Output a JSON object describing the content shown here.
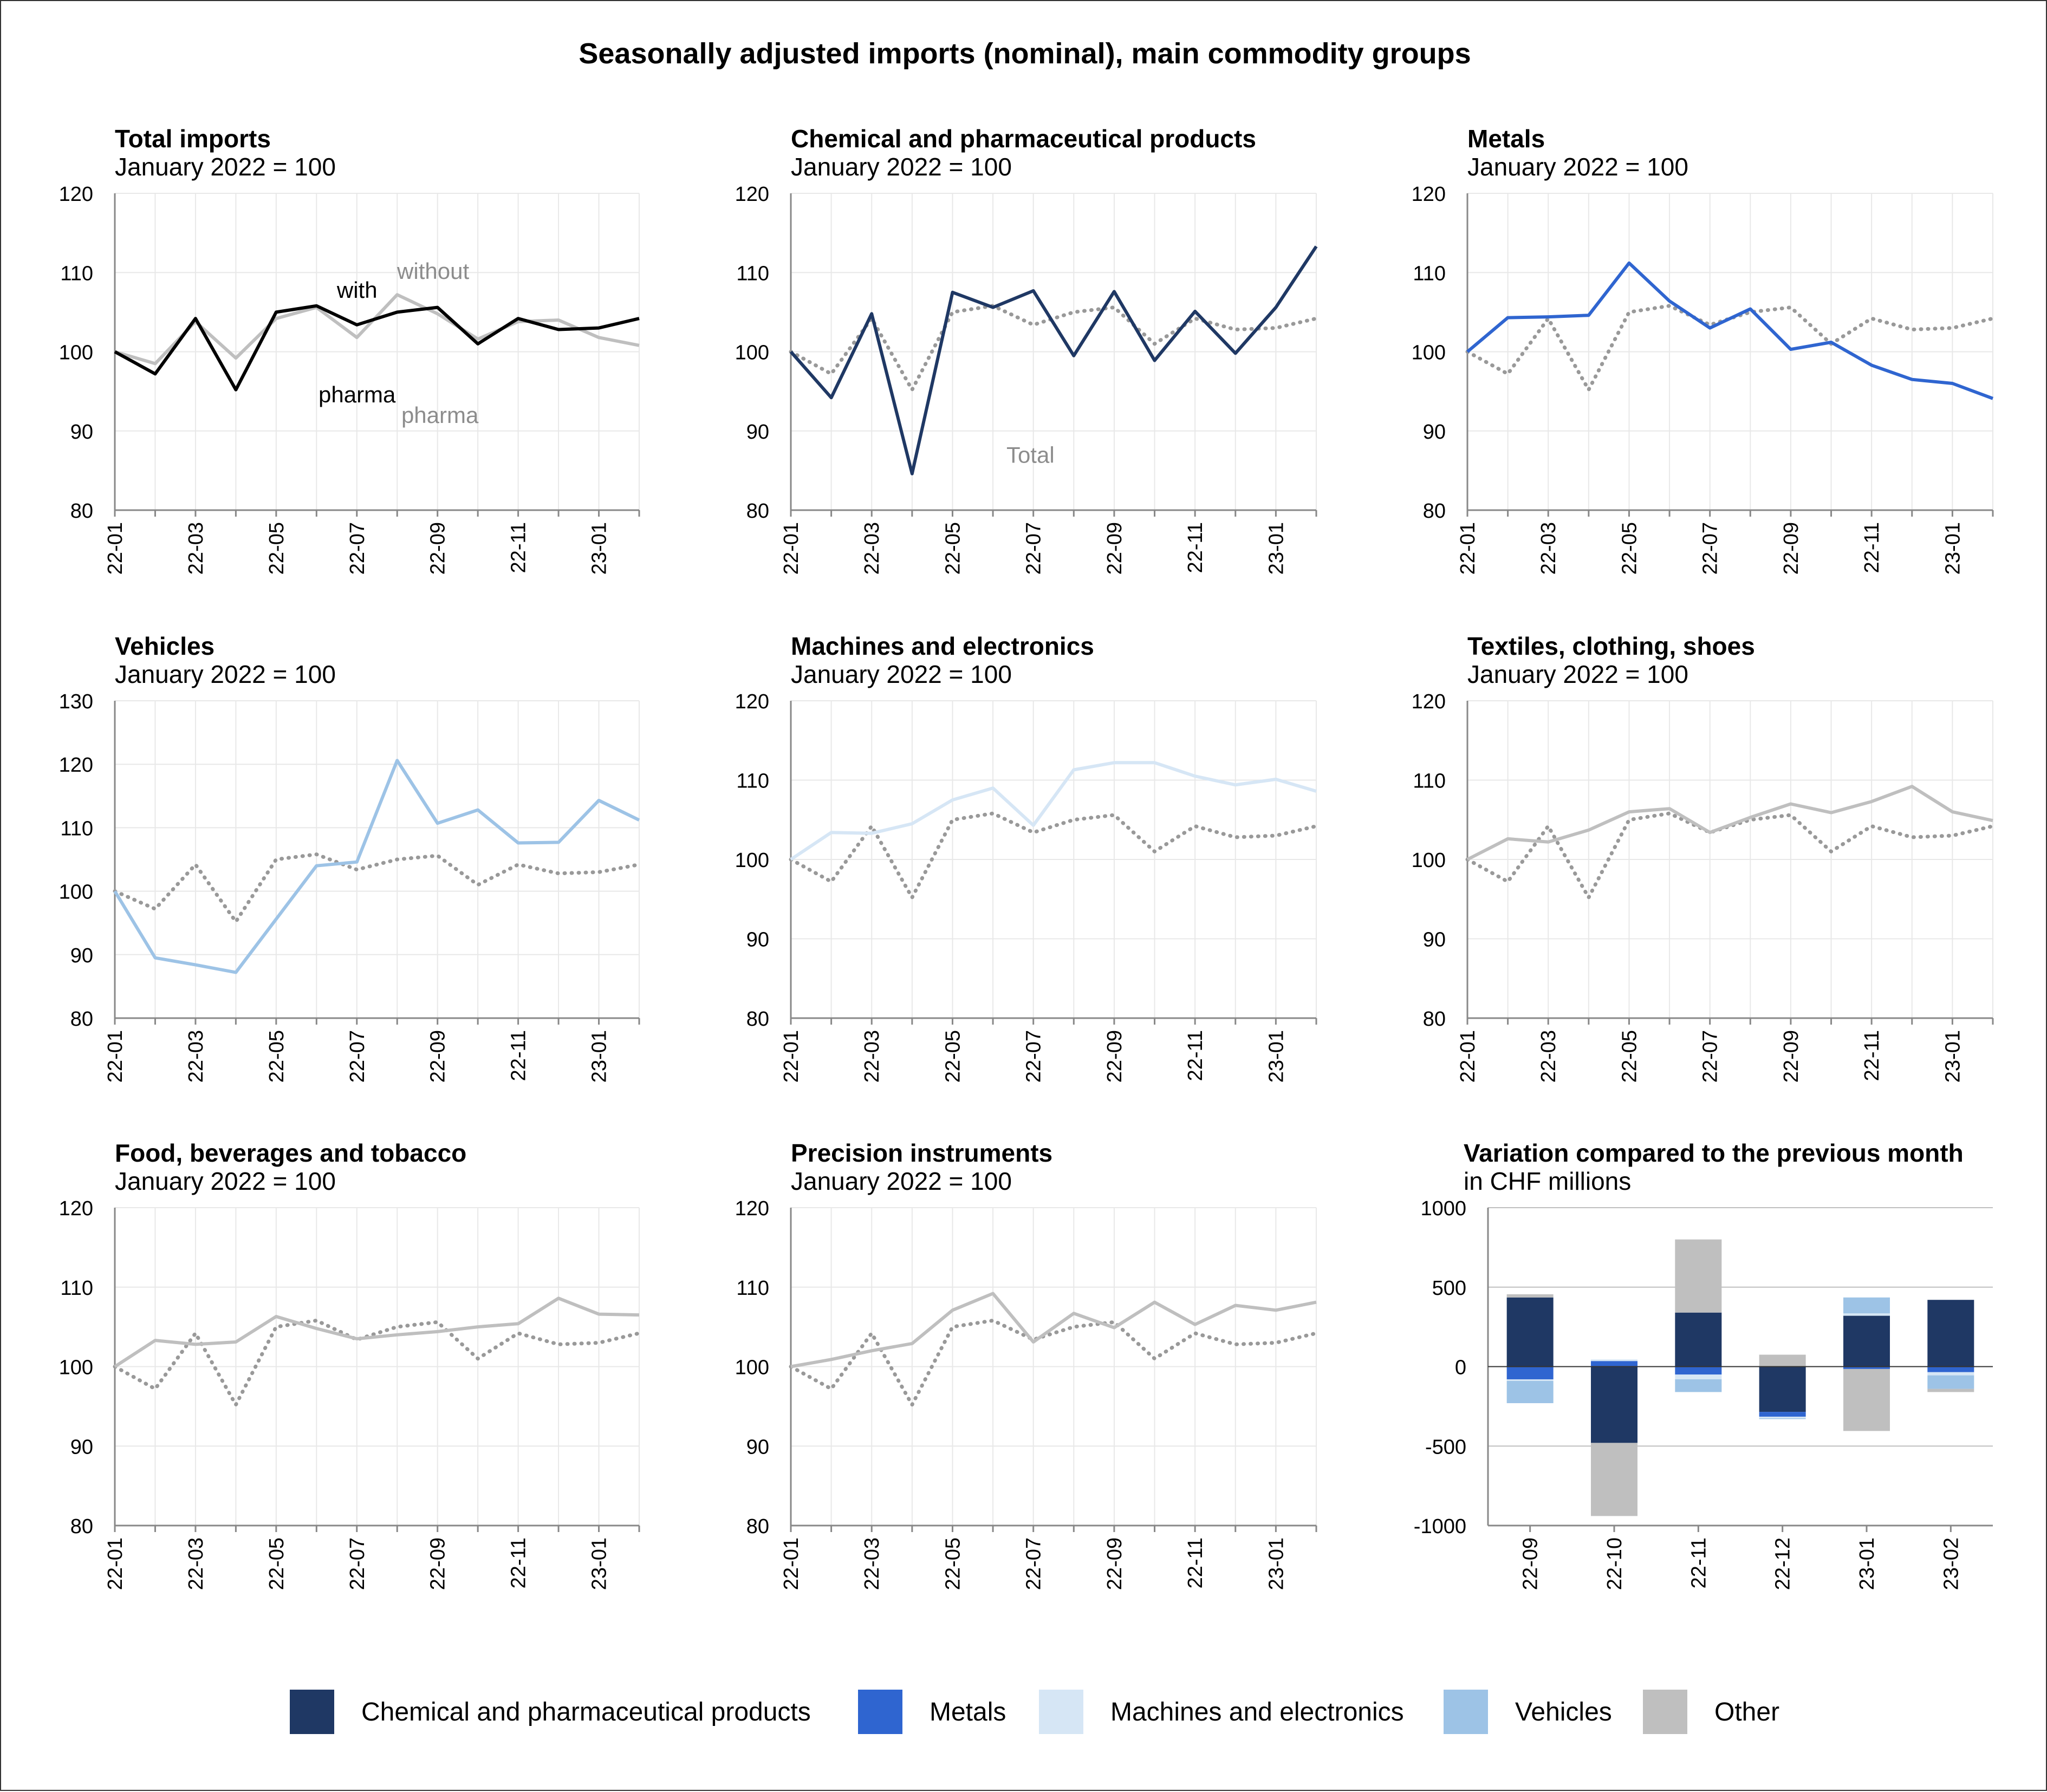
{
  "title": "Seasonally adjusted imports (nominal), main commodity groups",
  "colors": {
    "chem": "#1f3864",
    "metals": "#2f65d0",
    "machines": "#d6e6f5",
    "vehicles": "#9dc3e6",
    "other": "#bfbfbf",
    "total_black": "#000000",
    "without_pharma": "#bfbfbf",
    "reference_dotted": "#999999",
    "grid": "#e8e8e8",
    "axis": "#888888"
  },
  "x_tick_labels": [
    "22-01",
    "22-03",
    "22-05",
    "22-07",
    "22-09",
    "22-11",
    "23-01"
  ],
  "chart_data": [
    {
      "id": "total",
      "type": "line",
      "title": "Total imports",
      "subtitle": "January 2022 = 100",
      "ylim": [
        80,
        120
      ],
      "yticks": [
        80,
        90,
        100,
        110,
        120
      ],
      "x": [
        "22-01",
        "22-02",
        "22-03",
        "22-04",
        "22-05",
        "22-06",
        "22-07",
        "22-08",
        "22-09",
        "22-10",
        "22-11",
        "22-12",
        "23-01",
        "23-02"
      ],
      "series": [
        {
          "name": "without pharma",
          "color": "#bfbfbf",
          "style": "solid",
          "values": [
            100,
            98.5,
            103.8,
            99.2,
            104.2,
            105.6,
            101.8,
            107.2,
            104.8,
            101.6,
            103.8,
            104.0,
            101.8,
            100.8
          ]
        },
        {
          "name": "with pharma",
          "color": "#000000",
          "style": "solid",
          "values": [
            100,
            97.2,
            104.2,
            95.2,
            105.0,
            105.8,
            103.4,
            105.0,
            105.6,
            101.0,
            104.2,
            102.8,
            103.0,
            104.2
          ]
        }
      ],
      "annotations": [
        {
          "id": "with",
          "text": "with",
          "color": "#000000"
        },
        {
          "id": "pharma1",
          "text": "pharma",
          "color": "#000000"
        },
        {
          "id": "without",
          "text": "without",
          "color": "#8c8c8c"
        },
        {
          "id": "pharma2",
          "text": "pharma",
          "color": "#8c8c8c"
        }
      ]
    },
    {
      "id": "chem",
      "type": "line",
      "title": "Chemical and pharmaceutical products",
      "subtitle": "January 2022 = 100",
      "ylim": [
        80,
        120
      ],
      "yticks": [
        80,
        90,
        100,
        110,
        120
      ],
      "x": [
        "22-01",
        "22-02",
        "22-03",
        "22-04",
        "22-05",
        "22-06",
        "22-07",
        "22-08",
        "22-09",
        "22-10",
        "22-11",
        "22-12",
        "23-01",
        "23-02"
      ],
      "series": [
        {
          "name": "Total",
          "color": "#999999",
          "style": "dotted",
          "values": [
            100,
            97.2,
            104.2,
            95.2,
            105.0,
            105.8,
            103.4,
            105.0,
            105.6,
            101.0,
            104.2,
            102.8,
            103.0,
            104.2
          ]
        },
        {
          "name": "Chemical and pharmaceutical products",
          "color": "#1f3864",
          "style": "solid",
          "values": [
            100,
            94.2,
            104.8,
            84.6,
            107.5,
            105.6,
            107.7,
            99.5,
            107.6,
            98.9,
            105.1,
            99.8,
            105.6,
            113.3
          ]
        }
      ],
      "annotations": [
        {
          "id": "total",
          "text": "Total",
          "color": "#8c8c8c"
        }
      ]
    },
    {
      "id": "metals",
      "type": "line",
      "title": "Metals",
      "subtitle": "January 2022 = 100",
      "ylim": [
        80,
        120
      ],
      "yticks": [
        80,
        90,
        100,
        110,
        120
      ],
      "x": [
        "22-01",
        "22-02",
        "22-03",
        "22-04",
        "22-05",
        "22-06",
        "22-07",
        "22-08",
        "22-09",
        "22-10",
        "22-11",
        "22-12",
        "23-01",
        "23-02"
      ],
      "series": [
        {
          "name": "Total",
          "color": "#999999",
          "style": "dotted",
          "values": [
            100,
            97.2,
            104.2,
            95.2,
            105.0,
            105.8,
            103.4,
            105.0,
            105.6,
            101.0,
            104.2,
            102.8,
            103.0,
            104.2
          ]
        },
        {
          "name": "Metals",
          "color": "#2f65d0",
          "style": "solid",
          "values": [
            100,
            104.3,
            104.4,
            104.6,
            111.2,
            106.4,
            103.0,
            105.4,
            100.3,
            101.2,
            98.3,
            96.5,
            96.0,
            94.1
          ]
        }
      ]
    },
    {
      "id": "vehicles",
      "type": "line",
      "title": "Vehicles",
      "subtitle": "January 2022 = 100",
      "ylim": [
        80,
        130
      ],
      "yticks": [
        80,
        90,
        100,
        110,
        120,
        130
      ],
      "x": [
        "22-01",
        "22-02",
        "22-03",
        "22-04",
        "22-05",
        "22-06",
        "22-07",
        "22-08",
        "22-09",
        "22-10",
        "22-11",
        "22-12",
        "23-01",
        "23-02"
      ],
      "series": [
        {
          "name": "Total",
          "color": "#999999",
          "style": "dotted",
          "values": [
            100,
            97.2,
            104.2,
            95.2,
            105.0,
            105.8,
            103.4,
            105.0,
            105.6,
            101.0,
            104.2,
            102.8,
            103.0,
            104.2
          ]
        },
        {
          "name": "Vehicles",
          "color": "#9dc3e6",
          "style": "solid",
          "values": [
            100,
            89.5,
            88.4,
            87.2,
            95.6,
            104.0,
            104.6,
            120.6,
            110.7,
            112.8,
            107.6,
            107.7,
            114.3,
            111.2
          ]
        }
      ]
    },
    {
      "id": "machines",
      "type": "line",
      "title": "Machines and electronics",
      "subtitle": "January 2022 = 100",
      "ylim": [
        80,
        120
      ],
      "yticks": [
        80,
        90,
        100,
        110,
        120
      ],
      "x": [
        "22-01",
        "22-02",
        "22-03",
        "22-04",
        "22-05",
        "22-06",
        "22-07",
        "22-08",
        "22-09",
        "22-10",
        "22-11",
        "22-12",
        "23-01",
        "23-02"
      ],
      "series": [
        {
          "name": "Total",
          "color": "#999999",
          "style": "dotted",
          "values": [
            100,
            97.2,
            104.2,
            95.2,
            105.0,
            105.8,
            103.4,
            105.0,
            105.6,
            101.0,
            104.2,
            102.8,
            103.0,
            104.2
          ]
        },
        {
          "name": "Machines and electronics",
          "color": "#d6e6f5",
          "style": "solid",
          "values": [
            100,
            103.4,
            103.3,
            104.5,
            107.5,
            109.0,
            104.3,
            111.3,
            112.2,
            112.2,
            110.5,
            109.4,
            110.1,
            108.6
          ]
        }
      ]
    },
    {
      "id": "textiles",
      "type": "line",
      "title": "Textiles, clothing, shoes",
      "subtitle": "January 2022 = 100",
      "ylim": [
        80,
        120
      ],
      "yticks": [
        80,
        90,
        100,
        110,
        120
      ],
      "x": [
        "22-01",
        "22-02",
        "22-03",
        "22-04",
        "22-05",
        "22-06",
        "22-07",
        "22-08",
        "22-09",
        "22-10",
        "22-11",
        "22-12",
        "23-01",
        "23-02"
      ],
      "series": [
        {
          "name": "Total",
          "color": "#999999",
          "style": "dotted",
          "values": [
            100,
            97.2,
            104.2,
            95.2,
            105.0,
            105.8,
            103.4,
            105.0,
            105.6,
            101.0,
            104.2,
            102.8,
            103.0,
            104.2
          ]
        },
        {
          "name": "Textiles, clothing, shoes",
          "color": "#bfbfbf",
          "style": "solid",
          "values": [
            100,
            102.6,
            102.2,
            103.7,
            106.0,
            106.4,
            103.4,
            105.3,
            107.0,
            105.9,
            107.3,
            109.2,
            106.0,
            104.9
          ]
        }
      ]
    },
    {
      "id": "food",
      "type": "line",
      "title": "Food, beverages and tobacco",
      "subtitle": "January 2022 = 100",
      "ylim": [
        80,
        120
      ],
      "yticks": [
        80,
        90,
        100,
        110,
        120
      ],
      "x": [
        "22-01",
        "22-02",
        "22-03",
        "22-04",
        "22-05",
        "22-06",
        "22-07",
        "22-08",
        "22-09",
        "22-10",
        "22-11",
        "22-12",
        "23-01",
        "23-02"
      ],
      "series": [
        {
          "name": "Total",
          "color": "#999999",
          "style": "dotted",
          "values": [
            100,
            97.2,
            104.2,
            95.2,
            105.0,
            105.8,
            103.4,
            105.0,
            105.6,
            101.0,
            104.2,
            102.8,
            103.0,
            104.2
          ]
        },
        {
          "name": "Food, beverages and tobacco",
          "color": "#bfbfbf",
          "style": "solid",
          "values": [
            100,
            103.3,
            102.8,
            103.1,
            106.3,
            104.8,
            103.5,
            104.0,
            104.4,
            105.0,
            105.4,
            108.6,
            106.6,
            106.5
          ]
        }
      ]
    },
    {
      "id": "precision",
      "type": "line",
      "title": "Precision instruments",
      "subtitle": "January 2022 = 100",
      "ylim": [
        80,
        120
      ],
      "yticks": [
        80,
        90,
        100,
        110,
        120
      ],
      "x": [
        "22-01",
        "22-02",
        "22-03",
        "22-04",
        "22-05",
        "22-06",
        "22-07",
        "22-08",
        "22-09",
        "22-10",
        "22-11",
        "22-12",
        "23-01",
        "23-02"
      ],
      "series": [
        {
          "name": "Total",
          "color": "#999999",
          "style": "dotted",
          "values": [
            100,
            97.2,
            104.2,
            95.2,
            105.0,
            105.8,
            103.4,
            105.0,
            105.6,
            101.0,
            104.2,
            102.8,
            103.0,
            104.2
          ]
        },
        {
          "name": "Precision instruments",
          "color": "#bfbfbf",
          "style": "solid",
          "values": [
            100,
            100.9,
            102.0,
            102.9,
            107.1,
            109.2,
            103.1,
            106.7,
            104.9,
            108.1,
            105.3,
            107.7,
            107.1,
            108.1
          ]
        }
      ]
    },
    {
      "id": "variation",
      "type": "bar",
      "stacked": true,
      "title": "Variation compared to the previous month",
      "subtitle": "in CHF millions",
      "ylim": [
        -1000,
        1000
      ],
      "yticks": [
        -1000,
        -500,
        0,
        500,
        1000
      ],
      "categories": [
        "22-09",
        "22-10",
        "22-11",
        "22-12",
        "23-01",
        "23-02"
      ],
      "series": [
        {
          "name": "Chemical and pharmaceutical products",
          "color": "#1f3864",
          "values": [
            435,
            -480,
            340,
            -285,
            320,
            420
          ]
        },
        {
          "name": "Metals",
          "color": "#2f65d0",
          "values": [
            -80,
            35,
            -50,
            -30,
            -15,
            -35
          ]
        },
        {
          "name": "Machines and electronics",
          "color": "#d6e6f5",
          "values": [
            -10,
            10,
            -30,
            -10,
            15,
            -20
          ]
        },
        {
          "name": "Vehicles",
          "color": "#9dc3e6",
          "values": [
            -140,
            0,
            -80,
            -5,
            100,
            -85
          ]
        },
        {
          "name": "Other",
          "color": "#bfbfbf",
          "values": [
            20,
            -460,
            460,
            75,
            -390,
            -20
          ]
        }
      ]
    }
  ],
  "legend": [
    {
      "label": "Chemical and pharmaceutical products",
      "color": "#1f3864"
    },
    {
      "label": "Metals",
      "color": "#2f65d0"
    },
    {
      "label": "Machines and electronics",
      "color": "#d6e6f5"
    },
    {
      "label": "Vehicles",
      "color": "#9dc3e6"
    },
    {
      "label": "Other",
      "color": "#bfbfbf"
    }
  ]
}
